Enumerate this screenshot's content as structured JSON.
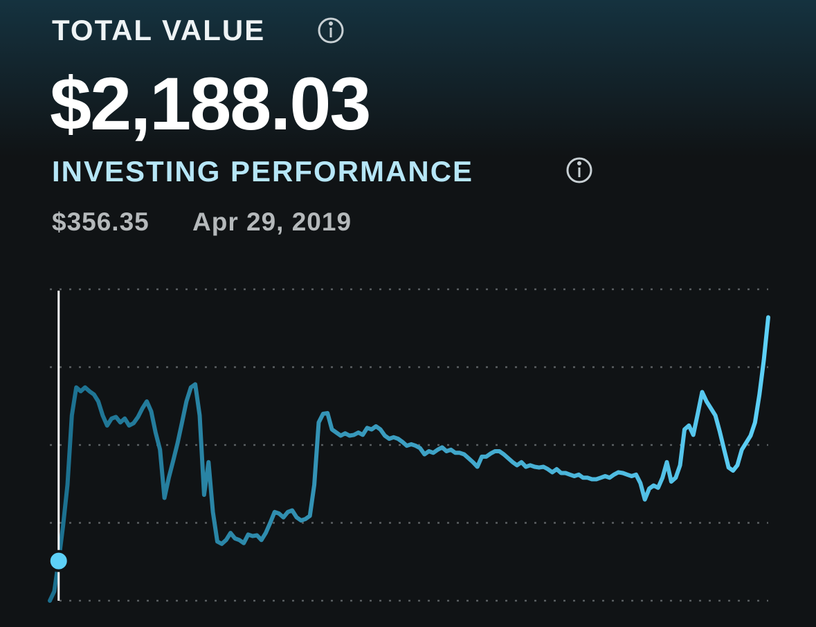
{
  "header": {
    "title": "TOTAL VALUE",
    "total_value": "$2,188.03"
  },
  "performance": {
    "title": "INVESTING PERFORMANCE",
    "selected_value": "$356.35",
    "selected_date": "Apr 29, 2019"
  },
  "chart_data": {
    "type": "line",
    "values": [
      0,
      0.12,
      0.51,
      0.96,
      1.49,
      2.38,
      2.74,
      2.69,
      2.74,
      2.69,
      2.65,
      2.56,
      2.38,
      2.25,
      2.34,
      2.36,
      2.29,
      2.34,
      2.25,
      2.28,
      2.36,
      2.47,
      2.56,
      2.43,
      2.16,
      1.94,
      1.32,
      1.58,
      1.8,
      2.03,
      2.29,
      2.56,
      2.74,
      2.78,
      2.38,
      1.36,
      1.78,
      1.14,
      0.76,
      0.73,
      0.78,
      0.87,
      0.8,
      0.78,
      0.74,
      0.85,
      0.83,
      0.84,
      0.78,
      0.87,
      1.0,
      1.14,
      1.12,
      1.07,
      1.14,
      1.16,
      1.07,
      1.03,
      1.05,
      1.09,
      1.49,
      2.29,
      2.4,
      2.41,
      2.2,
      2.16,
      2.12,
      2.15,
      2.12,
      2.13,
      2.16,
      2.13,
      2.22,
      2.2,
      2.24,
      2.2,
      2.12,
      2.08,
      2.1,
      2.08,
      2.04,
      1.99,
      2.01,
      1.99,
      1.96,
      1.88,
      1.92,
      1.9,
      1.94,
      1.97,
      1.92,
      1.94,
      1.9,
      1.9,
      1.88,
      1.83,
      1.78,
      1.72,
      1.85,
      1.85,
      1.89,
      1.92,
      1.92,
      1.88,
      1.83,
      1.78,
      1.74,
      1.78,
      1.72,
      1.74,
      1.72,
      1.71,
      1.72,
      1.69,
      1.65,
      1.69,
      1.64,
      1.64,
      1.62,
      1.6,
      1.62,
      1.58,
      1.58,
      1.56,
      1.56,
      1.58,
      1.6,
      1.58,
      1.62,
      1.65,
      1.64,
      1.62,
      1.6,
      1.62,
      1.51,
      1.3,
      1.44,
      1.48,
      1.45,
      1.58,
      1.78,
      1.53,
      1.58,
      1.74,
      2.2,
      2.25,
      2.13,
      2.4,
      2.68,
      2.56,
      2.47,
      2.38,
      2.17,
      1.94,
      1.71,
      1.67,
      1.74,
      1.94,
      2.03,
      2.12,
      2.29,
      2.65,
      3.09,
      3.64
    ],
    "ylim": [
      0,
      4
    ],
    "yticks": [
      0,
      1,
      2,
      3,
      4
    ],
    "grid": true,
    "color_start": "#1b6f8e",
    "color_end": "#5dd0f7"
  }
}
